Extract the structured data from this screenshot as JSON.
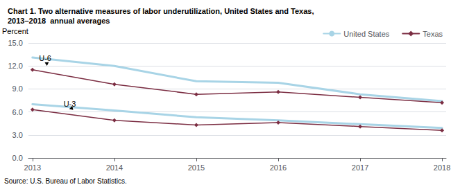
{
  "chart_data": {
    "type": "line",
    "title": "Chart 1. Two alternative measures of labor underutilization, United States and Texas,\n2013–2018  annual averages",
    "ylabel": "Percent",
    "source": "Source: U.S. Bureau of Labor Statistics.",
    "x": [
      2013,
      2014,
      2015,
      2016,
      2017,
      2018
    ],
    "series": [
      {
        "name": "United States",
        "color": "#a8d4e6",
        "marker": "none",
        "values": [
          13.1,
          12.0,
          10.0,
          9.8,
          8.3,
          7.4
        ]
      },
      {
        "name": "United States",
        "color": "#a8d4e6",
        "marker": "none",
        "values": [
          7.0,
          6.2,
          5.3,
          4.9,
          4.4,
          3.9
        ]
      },
      {
        "name": "Texas",
        "color": "#7B2D42",
        "marker": "diamond",
        "values": [
          11.5,
          9.6,
          8.3,
          8.6,
          7.9,
          7.2
        ]
      },
      {
        "name": "Texas",
        "color": "#7B2D42",
        "marker": "diamond",
        "values": [
          6.3,
          4.9,
          4.3,
          4.6,
          4.1,
          3.6
        ]
      }
    ],
    "xlim": [
      2012.95,
      2018.05
    ],
    "xticks": [
      2013,
      2014,
      2015,
      2016,
      2017,
      2018
    ],
    "ylim": [
      0.0,
      15.0
    ],
    "yticks": [
      {
        "value": 0.0,
        "label": "0.0"
      },
      {
        "value": 3.0,
        "label": "3.0"
      },
      {
        "value": 6.0,
        "label": "6.0"
      },
      {
        "value": 9.0,
        "label": "9.0"
      },
      {
        "value": 12.0,
        "label": "12.0"
      },
      {
        "value": 15.0,
        "label": "15.0"
      }
    ],
    "grid": "y",
    "legend": "upper right",
    "annotations": [
      {
        "text": "U-6",
        "x": 2013.15,
        "y": 12.45,
        "text_x": 2013.08,
        "text_y": 13.05
      },
      {
        "text": "U-3",
        "x": 2013.45,
        "y": 6.4,
        "text_x": 2013.38,
        "text_y": 7.05
      }
    ]
  }
}
